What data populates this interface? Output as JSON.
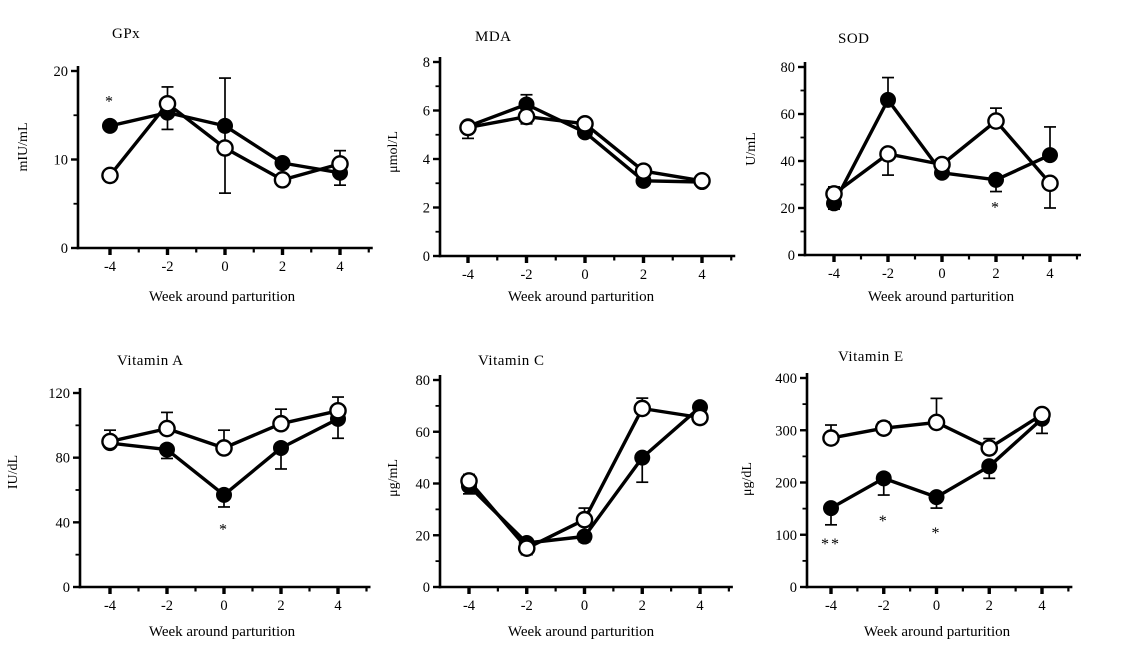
{
  "figure": {
    "background": "#ffffff",
    "ink_color": "#000000",
    "marker_legend": {
      "filled_circle": "filled-circle-series",
      "open_circle": "open-circle-series"
    }
  },
  "chart_data": [
    {
      "type": "line",
      "title": "GPx",
      "ylabel": "mIU/mL",
      "xlabel": "Week around parturition",
      "x": [
        -4,
        -2,
        0,
        2,
        4
      ],
      "xticks": [
        "-4",
        "-2",
        "0",
        "2",
        "4"
      ],
      "xminor": [
        -3,
        -1,
        1,
        3,
        5
      ],
      "ylim": [
        0,
        20
      ],
      "yticks": [
        0,
        10,
        20
      ],
      "yminor": [
        5,
        15
      ],
      "grid": false,
      "legend": "none",
      "series": [
        {
          "name": "filled-circle-series",
          "marker": "filled-circle",
          "values": [
            13.8,
            15.3,
            13.8,
            9.6,
            8.5
          ],
          "err_lo": [
            0,
            0,
            7.6,
            0,
            1.4
          ],
          "err_hi": [
            0,
            0,
            5.4,
            0,
            0
          ]
        },
        {
          "name": "open-circle-series",
          "marker": "open-circle",
          "values": [
            8.2,
            16.3,
            11.3,
            7.7,
            9.5
          ],
          "err_lo": [
            0,
            2.9,
            0,
            0,
            0
          ],
          "err_hi": [
            0,
            1.9,
            0,
            0,
            1.5
          ]
        }
      ],
      "annotations": [
        {
          "text": "*",
          "x": -4,
          "y": 17
        }
      ]
    },
    {
      "type": "line",
      "title": "MDA",
      "ylabel": "μmol/L",
      "xlabel": "Week around parturition",
      "x": [
        -4,
        -2,
        0,
        2,
        4
      ],
      "xticks": [
        "-4",
        "-2",
        "0",
        "2",
        "4"
      ],
      "xminor": [
        -3,
        -1,
        1,
        3,
        5
      ],
      "ylim": [
        0,
        8
      ],
      "yticks": [
        0,
        2,
        4,
        6,
        8
      ],
      "yminor": [
        1,
        3,
        5,
        7
      ],
      "grid": false,
      "legend": "none",
      "series": [
        {
          "name": "filled-circle-series",
          "marker": "filled-circle",
          "values": [
            5.35,
            6.25,
            5.1,
            3.1,
            3.05
          ],
          "err_lo": [
            0,
            0,
            0,
            0,
            0
          ],
          "err_hi": [
            0,
            0.4,
            0,
            0,
            0
          ]
        },
        {
          "name": "open-circle-series",
          "marker": "open-circle",
          "values": [
            5.3,
            5.75,
            5.45,
            3.5,
            3.1
          ],
          "err_lo": [
            0.45,
            0.3,
            0,
            0,
            0
          ],
          "err_hi": [
            0,
            0,
            0,
            0,
            0
          ]
        }
      ],
      "annotations": []
    },
    {
      "type": "line",
      "title": "SOD",
      "ylabel": "U/mL",
      "xlabel": "Week around parturition",
      "x": [
        -4,
        -2,
        0,
        2,
        4
      ],
      "xticks": [
        "-4",
        "-2",
        "0",
        "2",
        "4"
      ],
      "xminor": [
        -3,
        -1,
        1,
        3,
        5
      ],
      "ylim": [
        0,
        80
      ],
      "yticks": [
        0,
        20,
        40,
        60,
        80
      ],
      "yminor": [
        10,
        30,
        50,
        70
      ],
      "grid": false,
      "legend": "none",
      "series": [
        {
          "name": "filled-circle-series",
          "marker": "filled-circle",
          "values": [
            22,
            66,
            35,
            32,
            42.5
          ],
          "err_lo": [
            2.5,
            0,
            0,
            5,
            0
          ],
          "err_hi": [
            0,
            9.5,
            0,
            0,
            12
          ]
        },
        {
          "name": "open-circle-series",
          "marker": "open-circle",
          "values": [
            26,
            43,
            38.5,
            57,
            30.5
          ],
          "err_lo": [
            0,
            9,
            0,
            0,
            10.5
          ],
          "err_hi": [
            3,
            0,
            0,
            5.5,
            0
          ]
        }
      ],
      "annotations": [
        {
          "text": "*",
          "x": 2,
          "y": 22
        }
      ]
    },
    {
      "type": "line",
      "title": "Vitamin A",
      "ylabel": "IU/dL",
      "xlabel": "Week around parturition",
      "x": [
        -4,
        -2,
        0,
        2,
        4
      ],
      "xticks": [
        "-4",
        "-2",
        "0",
        "2",
        "4"
      ],
      "xminor": [
        -3,
        -1,
        1,
        3,
        5
      ],
      "ylim": [
        0,
        120
      ],
      "yticks": [
        0,
        40,
        80,
        120
      ],
      "yminor": [
        20,
        60,
        100
      ],
      "grid": false,
      "legend": "none",
      "series": [
        {
          "name": "filled-circle-series",
          "marker": "filled-circle",
          "values": [
            89,
            85,
            57,
            86,
            104
          ],
          "err_lo": [
            0,
            5.5,
            7.5,
            13,
            12
          ],
          "err_hi": [
            8,
            0,
            0,
            0,
            0
          ]
        },
        {
          "name": "open-circle-series",
          "marker": "open-circle",
          "values": [
            90,
            98,
            86,
            101,
            109
          ],
          "err_lo": [
            0,
            0,
            0,
            0,
            0
          ],
          "err_hi": [
            0,
            10,
            11,
            9,
            8.5
          ]
        }
      ],
      "annotations": [
        {
          "text": "*",
          "x": 0,
          "y": 38
        }
      ]
    },
    {
      "type": "line",
      "title": "Vitamin C",
      "ylabel": "μg/mL",
      "xlabel": "Week around parturition",
      "x": [
        -4,
        -2,
        0,
        2,
        4
      ],
      "xticks": [
        "-4",
        "-2",
        "0",
        "2",
        "4"
      ],
      "xminor": [
        -3,
        -1,
        1,
        3,
        5
      ],
      "ylim": [
        0,
        80
      ],
      "yticks": [
        0,
        20,
        40,
        60,
        80
      ],
      "yminor": [
        10,
        30,
        50,
        70
      ],
      "grid": false,
      "legend": "none",
      "series": [
        {
          "name": "filled-circle-series",
          "marker": "filled-circle",
          "values": [
            39,
            17,
            19.5,
            50,
            69.5
          ],
          "err_lo": [
            3,
            0,
            2,
            9.5,
            0
          ],
          "err_hi": [
            0,
            0,
            0,
            0,
            0
          ]
        },
        {
          "name": "open-circle-series",
          "marker": "open-circle",
          "values": [
            41,
            15,
            26,
            69,
            65.5
          ],
          "err_lo": [
            0,
            2.5,
            0,
            0,
            0
          ],
          "err_hi": [
            2.5,
            0,
            4.5,
            4,
            0
          ]
        }
      ],
      "annotations": []
    },
    {
      "type": "line",
      "title": "Vitamin E",
      "ylabel": "μg/dL",
      "xlabel": "Week around parturition",
      "x": [
        -4,
        -2,
        0,
        2,
        4
      ],
      "xticks": [
        "-4",
        "-2",
        "0",
        "2",
        "4"
      ],
      "xminor": [
        -3,
        -1,
        1,
        3,
        5
      ],
      "ylim": [
        0,
        400
      ],
      "yticks": [
        0,
        100,
        200,
        300,
        400
      ],
      "yminor": [
        50,
        150,
        250,
        350
      ],
      "grid": false,
      "legend": "none",
      "series": [
        {
          "name": "filled-circle-series",
          "marker": "filled-circle",
          "values": [
            151,
            208,
            172,
            231,
            322
          ],
          "err_lo": [
            32,
            32,
            21,
            23,
            28
          ],
          "err_hi": [
            0,
            0,
            0,
            0,
            0
          ]
        },
        {
          "name": "open-circle-series",
          "marker": "open-circle",
          "values": [
            285,
            304,
            315,
            266,
            330
          ],
          "err_lo": [
            0,
            0,
            0,
            0,
            0
          ],
          "err_hi": [
            25,
            12,
            46,
            18,
            8
          ]
        }
      ],
      "annotations": [
        {
          "text": "**",
          "x": -4,
          "y": 90
        },
        {
          "text": "*",
          "x": -2,
          "y": 134
        },
        {
          "text": "*",
          "x": 0,
          "y": 111
        }
      ]
    }
  ]
}
